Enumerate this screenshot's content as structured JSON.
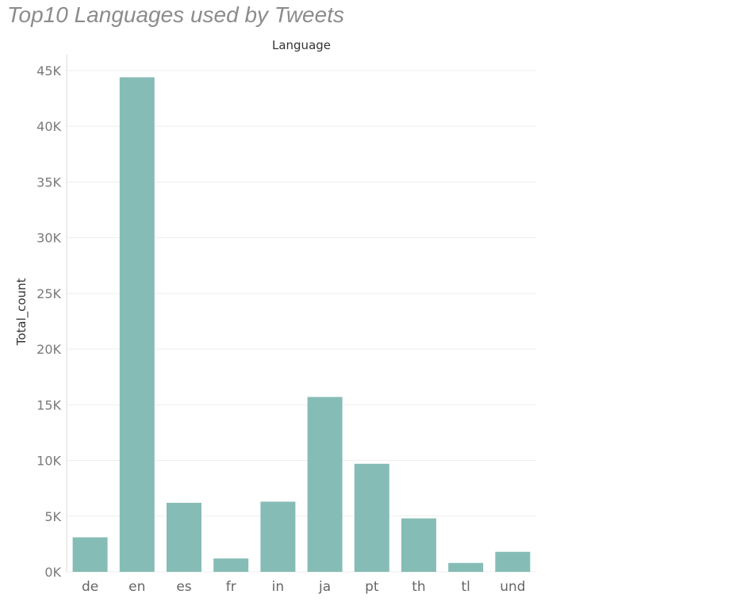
{
  "title": "Top10 Languages used by Tweets",
  "colors": {
    "bar": "#86bcb6",
    "grid": "#efefef",
    "axis": "#d9d9d9"
  },
  "chart_data": {
    "type": "bar",
    "title": "Top10 Languages used by Tweets",
    "xlabel": "Language",
    "ylabel": "Total_count",
    "categories": [
      "de",
      "en",
      "es",
      "fr",
      "in",
      "ja",
      "pt",
      "th",
      "tl",
      "und"
    ],
    "values": [
      3100,
      44400,
      6200,
      1200,
      6300,
      15700,
      9700,
      4800,
      800,
      1800
    ],
    "ylim": [
      0,
      45000
    ],
    "yticks": [
      0,
      5000,
      10000,
      15000,
      20000,
      25000,
      30000,
      35000,
      40000,
      45000
    ],
    "ytick_labels": [
      "0K",
      "5K",
      "10K",
      "15K",
      "20K",
      "25K",
      "30K",
      "35K",
      "40K",
      "45K"
    ],
    "grid": true,
    "legend": "none"
  }
}
